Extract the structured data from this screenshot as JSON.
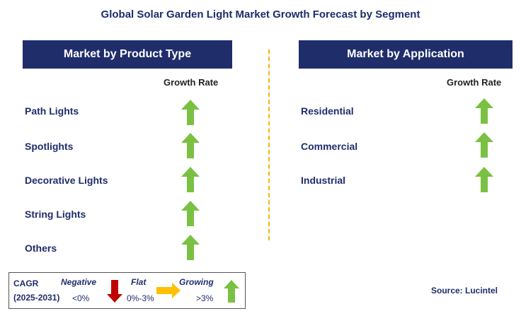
{
  "title": "Global Solar Garden Light Market Growth Forecast by Segment",
  "left_panel": {
    "header": "Market by Product Type",
    "growth_label": "Growth Rate",
    "rows": [
      {
        "label": "Path Lights",
        "trend": "growing"
      },
      {
        "label": "Spotlights",
        "trend": "growing"
      },
      {
        "label": "Decorative Lights",
        "trend": "growing"
      },
      {
        "label": "String Lights",
        "trend": "growing"
      },
      {
        "label": "Others",
        "trend": "growing"
      }
    ]
  },
  "right_panel": {
    "header": "Market by Application",
    "growth_label": "Growth Rate",
    "rows": [
      {
        "label": "Residential",
        "trend": "growing"
      },
      {
        "label": "Commercial",
        "trend": "growing"
      },
      {
        "label": "Industrial",
        "trend": "growing"
      }
    ]
  },
  "legend": {
    "cagr": "CAGR",
    "period": "(2025-2031)",
    "negative_label": "Negative",
    "negative_range": "<0%",
    "flat_label": "Flat",
    "flat_range": "0%-3%",
    "growing_label": "Growing",
    "growing_range": ">3%"
  },
  "source": "Source: Lucintel",
  "colors": {
    "navy": "#1f2d6b",
    "green": "#7ac143",
    "red": "#c00000",
    "yellow": "#ffc000"
  }
}
